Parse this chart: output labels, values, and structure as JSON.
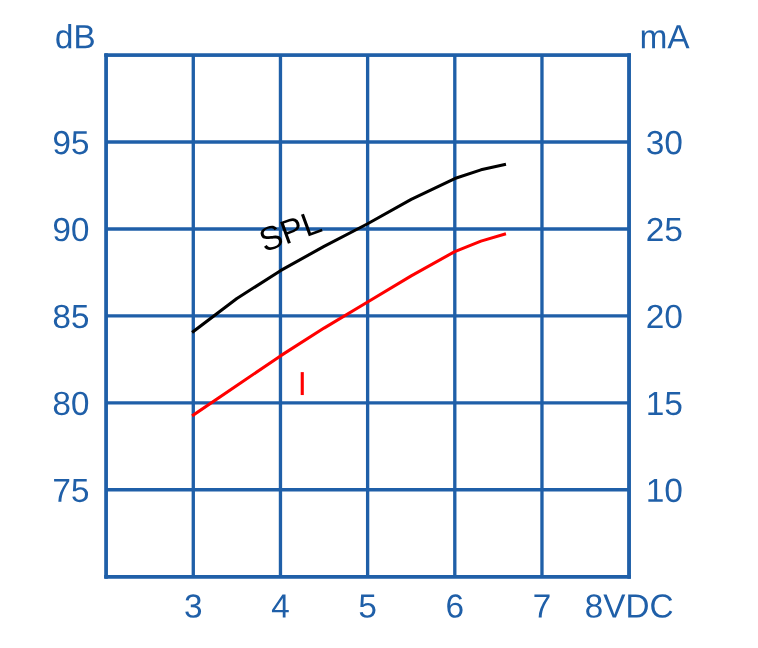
{
  "chart_data": {
    "type": "line",
    "ylabel": "dB",
    "y2label": "mA",
    "x": [
      3,
      3.5,
      4,
      4.5,
      5,
      5.5,
      6,
      6.3,
      6.57
    ],
    "series": [
      {
        "name": "SPL",
        "color": "#000000",
        "values": [
          84.1,
          86.0,
          87.6,
          89.0,
          90.3,
          91.7,
          92.9,
          93.4,
          93.7
        ]
      },
      {
        "name": "I",
        "color": "#ff0000",
        "axis": "y2",
        "values": [
          14.3,
          16.0,
          17.7,
          19.3,
          20.8,
          22.3,
          23.7,
          24.3,
          24.7
        ]
      }
    ],
    "xlim": [
      2,
      8
    ],
    "xticks": [
      3,
      4,
      5,
      6,
      7,
      {
        "value": 8,
        "label": "8VDC"
      }
    ],
    "ylim": [
      70,
      100
    ],
    "yticks": [
      75,
      80,
      85,
      90,
      95
    ],
    "y2lim": [
      5,
      35
    ],
    "y2ticks": [
      10,
      15,
      20,
      25,
      30
    ],
    "grid": true,
    "marker": "none",
    "line_style": "solid",
    "legend": false
  }
}
